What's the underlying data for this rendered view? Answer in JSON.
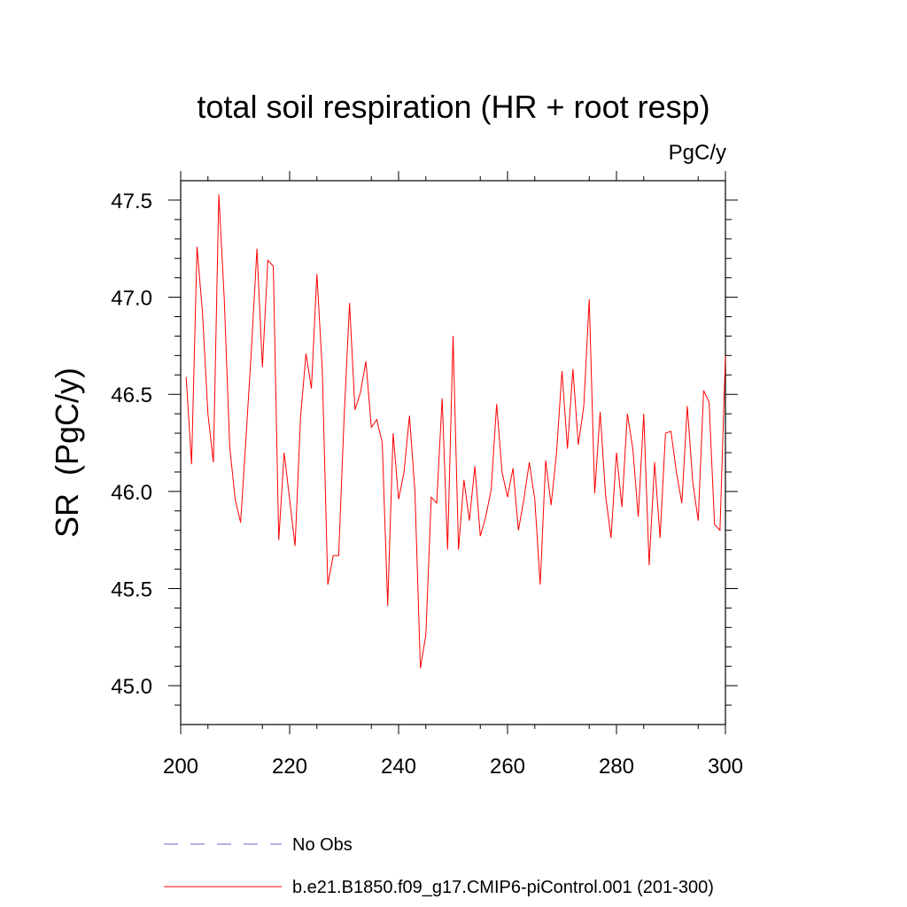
{
  "chart_data": {
    "type": "line",
    "title": "total soil respiration (HR + root resp)",
    "units_label": "PgC/y",
    "xlabel": "",
    "ylabel": "SR  (PgC/y)",
    "xlim": [
      200,
      300
    ],
    "ylim": [
      44.8,
      47.6
    ],
    "x_ticks": [
      200,
      220,
      240,
      260,
      280,
      300
    ],
    "x_tick_labels": [
      "200",
      "220",
      "240",
      "260",
      "280",
      "300"
    ],
    "y_ticks": [
      45.0,
      45.5,
      46.0,
      46.5,
      47.0,
      47.5
    ],
    "y_tick_labels": [
      "45.0",
      "45.5",
      "46.0",
      "46.5",
      "47.0",
      "47.5"
    ],
    "grid": false,
    "legend_position": "bottom",
    "series": [
      {
        "name": "No Obs",
        "color": "#6666cc",
        "style": "dashed",
        "x": [],
        "values": []
      },
      {
        "name": "b.e21.B1850.f09_g17.CMIP6-piControl.001 (201-300)",
        "color": "#ff0000",
        "style": "solid",
        "x": [
          201,
          202,
          203,
          204,
          205,
          206,
          207,
          208,
          209,
          210,
          211,
          212,
          213,
          214,
          215,
          216,
          217,
          218,
          219,
          220,
          221,
          222,
          223,
          224,
          225,
          226,
          227,
          228,
          229,
          230,
          231,
          232,
          233,
          234,
          235,
          236,
          237,
          238,
          239,
          240,
          241,
          242,
          243,
          244,
          245,
          246,
          247,
          248,
          249,
          250,
          251,
          252,
          253,
          254,
          255,
          256,
          257,
          258,
          259,
          260,
          261,
          262,
          263,
          264,
          265,
          266,
          267,
          268,
          269,
          270,
          271,
          272,
          273,
          274,
          275,
          276,
          277,
          278,
          279,
          280,
          281,
          282,
          283,
          284,
          285,
          286,
          287,
          288,
          289,
          290,
          291,
          292,
          293,
          294,
          295,
          296,
          297,
          298,
          299,
          300
        ],
        "values": [
          46.59,
          46.14,
          47.26,
          46.92,
          46.4,
          46.15,
          47.53,
          46.99,
          46.23,
          45.96,
          45.84,
          46.28,
          46.74,
          47.25,
          46.64,
          47.19,
          47.16,
          45.75,
          46.2,
          45.96,
          45.72,
          46.38,
          46.71,
          46.53,
          47.12,
          46.62,
          45.52,
          45.67,
          45.67,
          46.38,
          46.97,
          46.42,
          46.51,
          46.67,
          46.33,
          46.37,
          46.25,
          45.41,
          46.3,
          45.96,
          46.1,
          46.39,
          46.0,
          45.09,
          45.26,
          45.97,
          45.94,
          46.48,
          45.7,
          46.8,
          45.7,
          46.06,
          45.85,
          46.13,
          45.77,
          45.87,
          46.01,
          46.45,
          46.1,
          45.97,
          46.12,
          45.8,
          45.96,
          46.15,
          45.96,
          45.52,
          46.16,
          45.93,
          46.2,
          46.62,
          46.22,
          46.63,
          46.24,
          46.44,
          46.99,
          45.99,
          46.41,
          45.98,
          45.76,
          46.2,
          45.92,
          46.4,
          46.22,
          45.87,
          46.4,
          45.62,
          46.15,
          45.76,
          46.3,
          46.31,
          46.1,
          45.94,
          46.44,
          46.05,
          45.85,
          46.52,
          46.46,
          45.83,
          45.8,
          46.7
        ]
      }
    ]
  }
}
